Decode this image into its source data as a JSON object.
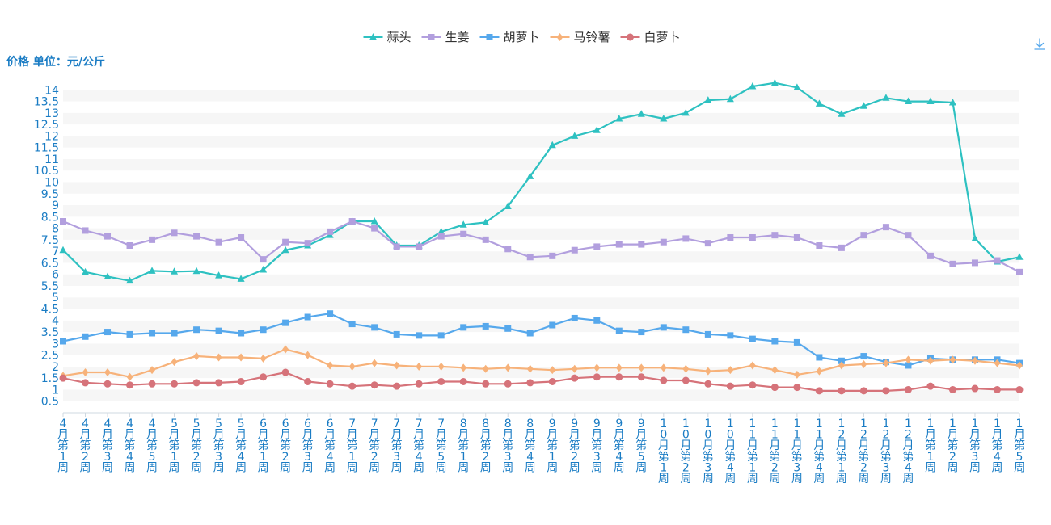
{
  "chart_data": {
    "type": "line",
    "ylabel": "价格 单位：元/公斤",
    "ylim": [
      0,
      14.5
    ],
    "yticks": [
      0.5,
      1,
      1.5,
      2,
      2.5,
      3,
      3.5,
      4,
      4.5,
      5,
      5.5,
      6,
      6.5,
      7,
      7.5,
      8,
      8.5,
      9,
      9.5,
      10,
      10.5,
      11,
      11.5,
      12,
      12.5,
      13,
      13.5,
      14
    ],
    "grid": "horizontal bands",
    "legend_position": "top-center",
    "categories": [
      "4月第1周",
      "4月第2周",
      "4月第3周",
      "4月第4周",
      "4月第5周",
      "5月第1周",
      "5月第2周",
      "5月第3周",
      "5月第4周",
      "6月第1周",
      "6月第2周",
      "6月第3周",
      "6月第4周",
      "7月第1周",
      "7月第2周",
      "7月第3周",
      "7月第4周",
      "7月第5周",
      "8月第1周",
      "8月第2周",
      "8月第3周",
      "8月第4周",
      "9月第1周",
      "9月第2周",
      "9月第3周",
      "9月第4周",
      "9月第5周",
      "10月第1周",
      "10月第2周",
      "10月第3周",
      "10月第4周",
      "11月第1周",
      "11月第2周",
      "11月第3周",
      "11月第4周",
      "12月第1周",
      "12月第2周",
      "12月第3周",
      "12月第4周",
      "1月第1周",
      "1月第2周",
      "1月第3周",
      "1月第4周",
      "1月第5周"
    ],
    "series": [
      {
        "name": "蒜头",
        "color": "#2ec1c1",
        "marker": "triangle",
        "values": [
          7.05,
          6.1,
          5.9,
          5.72,
          6.15,
          6.12,
          6.14,
          5.95,
          5.8,
          6.2,
          7.05,
          7.25,
          7.7,
          8.3,
          8.3,
          7.25,
          7.25,
          7.85,
          8.15,
          8.25,
          8.95,
          10.25,
          11.6,
          12.0,
          12.25,
          12.75,
          12.95,
          12.75,
          13.0,
          13.55,
          13.6,
          14.15,
          14.3,
          14.1,
          13.4,
          12.95,
          13.3,
          13.65,
          13.5,
          13.5,
          13.45,
          7.55,
          6.55,
          6.75
        ]
      },
      {
        "name": "生姜",
        "color": "#b29fde",
        "marker": "square",
        "values": [
          8.3,
          7.9,
          7.65,
          7.25,
          7.5,
          7.8,
          7.65,
          7.4,
          7.6,
          6.65,
          7.4,
          7.35,
          7.85,
          8.3,
          8.0,
          7.2,
          7.2,
          7.65,
          7.75,
          7.5,
          7.1,
          6.75,
          6.8,
          7.05,
          7.2,
          7.3,
          7.3,
          7.4,
          7.55,
          7.35,
          7.6,
          7.6,
          7.7,
          7.6,
          7.25,
          7.15,
          7.7,
          8.05,
          7.7,
          6.8,
          6.45,
          6.5,
          6.6,
          6.1
        ]
      },
      {
        "name": "胡萝卜",
        "color": "#56a8ec",
        "marker": "square",
        "values": [
          3.1,
          3.3,
          3.5,
          3.4,
          3.45,
          3.45,
          3.6,
          3.55,
          3.45,
          3.6,
          3.9,
          4.15,
          4.3,
          3.85,
          3.7,
          3.4,
          3.35,
          3.35,
          3.7,
          3.75,
          3.65,
          3.45,
          3.8,
          4.1,
          4.0,
          3.55,
          3.5,
          3.7,
          3.6,
          3.4,
          3.35,
          3.2,
          3.1,
          3.05,
          2.4,
          2.25,
          2.45,
          2.2,
          2.05,
          2.35,
          2.3,
          2.3,
          2.3,
          2.15
        ]
      },
      {
        "name": "马铃薯",
        "color": "#f7b27a",
        "marker": "diamond",
        "values": [
          1.6,
          1.75,
          1.75,
          1.55,
          1.85,
          2.2,
          2.45,
          2.4,
          2.4,
          2.35,
          2.75,
          2.5,
          2.05,
          2.0,
          2.15,
          2.05,
          2.0,
          2.0,
          1.95,
          1.9,
          1.95,
          1.9,
          1.85,
          1.9,
          1.95,
          1.95,
          1.95,
          1.95,
          1.9,
          1.8,
          1.85,
          2.05,
          1.85,
          1.65,
          1.8,
          2.05,
          2.1,
          2.15,
          2.3,
          2.25,
          2.3,
          2.25,
          2.15,
          2.05
        ]
      },
      {
        "name": "白萝卜",
        "color": "#d6737a",
        "marker": "circle",
        "values": [
          1.5,
          1.3,
          1.25,
          1.2,
          1.25,
          1.25,
          1.3,
          1.3,
          1.35,
          1.55,
          1.75,
          1.35,
          1.25,
          1.15,
          1.2,
          1.15,
          1.25,
          1.35,
          1.35,
          1.25,
          1.25,
          1.3,
          1.35,
          1.5,
          1.55,
          1.55,
          1.55,
          1.4,
          1.4,
          1.25,
          1.15,
          1.2,
          1.1,
          1.1,
          0.95,
          0.95,
          0.95,
          0.95,
          1.0,
          1.15,
          1.0,
          1.05,
          1.0,
          1.0
        ]
      }
    ]
  },
  "toolbar": {
    "download_icon": "download-icon"
  }
}
